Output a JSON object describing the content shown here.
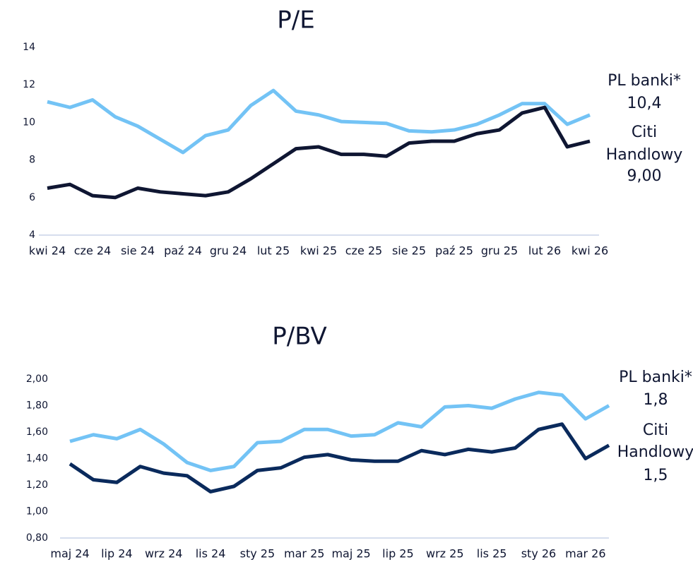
{
  "chart_data": [
    {
      "type": "line",
      "title": "P/E",
      "categories": [
        "kwi 24",
        null,
        "cze 24",
        null,
        "sie 24",
        null,
        "paź 24",
        null,
        "gru 24",
        null,
        "lut 25",
        null,
        "kwi 25",
        null,
        "cze 25",
        null,
        "sie 25",
        null,
        "paź 25",
        null,
        "gru 25",
        null,
        "lut 26",
        null,
        "kwi 26"
      ],
      "series": [
        {
          "color": "#73c3f5",
          "values": [
            11.1,
            10.8,
            11.2,
            10.3,
            9.8,
            9.1,
            8.4,
            9.3,
            9.6,
            10.9,
            11.7,
            10.6,
            10.4,
            10.05,
            10.0,
            9.95,
            9.55,
            9.5,
            9.6,
            9.9,
            10.4,
            11.0,
            11.0,
            9.9,
            10.4
          ]
        },
        {
          "color": "#0f1632",
          "values": [
            6.5,
            6.7,
            6.1,
            6.0,
            6.5,
            6.3,
            6.2,
            6.1,
            6.3,
            7.0,
            7.8,
            8.6,
            8.7,
            8.3,
            8.3,
            8.2,
            8.9,
            9.0,
            9.0,
            9.4,
            9.6,
            10.5,
            10.8,
            8.7,
            9.0
          ]
        }
      ],
      "ylim": [
        4,
        14
      ],
      "yticks": [
        4,
        6,
        8,
        10,
        12,
        14
      ],
      "annotations": [
        "PL banki*",
        "10,4",
        "Citi",
        "Handlowy",
        "9,00"
      ]
    },
    {
      "type": "line",
      "title": "P/BV",
      "categories": [
        "maj 24",
        null,
        "lip 24",
        null,
        "wrz 24",
        null,
        "lis 24",
        null,
        "sty 25",
        null,
        "mar 25",
        null,
        "maj 25",
        null,
        "lip 25",
        null,
        "wrz 25",
        null,
        "lis 25",
        null,
        "sty 26",
        null,
        "mar 26",
        null
      ],
      "series": [
        {
          "color": "#73c3f5",
          "values": [
            1.53,
            1.58,
            1.55,
            1.62,
            1.51,
            1.37,
            1.31,
            1.34,
            1.52,
            1.53,
            1.62,
            1.62,
            1.57,
            1.58,
            1.67,
            1.64,
            1.79,
            1.8,
            1.78,
            1.85,
            1.9,
            1.88,
            1.7,
            1.8
          ]
        },
        {
          "color": "#0a2a5c",
          "values": [
            1.36,
            1.24,
            1.22,
            1.34,
            1.29,
            1.27,
            1.15,
            1.19,
            1.31,
            1.33,
            1.41,
            1.43,
            1.39,
            1.38,
            1.38,
            1.46,
            1.43,
            1.47,
            1.45,
            1.48,
            1.62,
            1.66,
            1.4,
            1.5
          ]
        }
      ],
      "ylim": [
        0.8,
        2.0
      ],
      "yticks": [
        {
          "value": 0.8,
          "label": "0,80"
        },
        {
          "value": 1.0,
          "label": "1,00"
        },
        {
          "value": 1.2,
          "label": "1,20"
        },
        {
          "value": 1.4,
          "label": "1,40"
        },
        {
          "value": 1.6,
          "label": "1,60"
        },
        {
          "value": 1.8,
          "label": "1,80"
        },
        {
          "value": 2.0,
          "label": "2,00"
        }
      ],
      "annotations": [
        "PL banki*",
        "1,8",
        "Citi",
        "Handlowy",
        "1,5"
      ]
    }
  ]
}
